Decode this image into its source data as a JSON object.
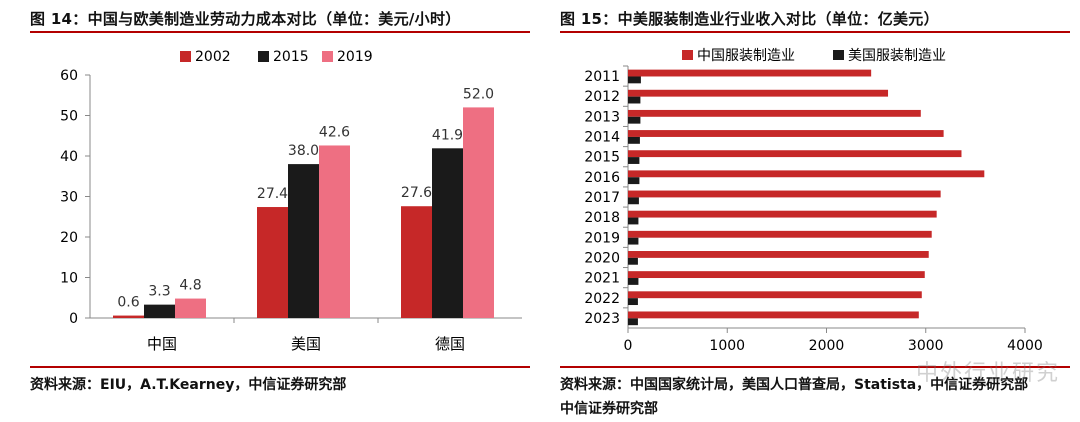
{
  "left": {
    "title": "图 14：中国与欧美制造业劳动力成本对比（单位：美元/小时）",
    "source": "资料来源：EIU，A.T.Kearney，中信证券研究部"
  },
  "right": {
    "title": "图 15：中美服装制造业行业收入对比（单位：亿美元）",
    "source_line1": "资料来源：中国国家统计局，美国人口普查局，Statista，中信证券研究部",
    "source_line2": "中信证券研究部"
  },
  "watermark": "中外行业研究",
  "colors": {
    "accent": "#b30000",
    "c2002": "#c62828",
    "c2015": "#1a1a1a",
    "c2019": "#ee6f82",
    "china": "#c62828",
    "us": "#1a1a1a"
  },
  "chart_data": [
    {
      "type": "bar",
      "categories": [
        "中国",
        "美国",
        "德国"
      ],
      "series": [
        {
          "name": "2002",
          "values": [
            0.6,
            27.4,
            27.6
          ]
        },
        {
          "name": "2015",
          "values": [
            3.3,
            38.0,
            41.9
          ]
        },
        {
          "name": "2019",
          "values": [
            4.8,
            42.6,
            52.0
          ]
        }
      ],
      "data_labels": [
        [
          "0.6",
          "27.4",
          "27.6"
        ],
        [
          "3.3",
          "38.0",
          "41.9"
        ],
        [
          "4.8",
          "42.6",
          "52.0"
        ]
      ],
      "yticks": [
        "0",
        "10",
        "20",
        "30",
        "40",
        "50",
        "60"
      ],
      "ylim": [
        0,
        60
      ],
      "legend": "top"
    },
    {
      "type": "bar",
      "orientation": "horizontal",
      "categories": [
        "2011",
        "2012",
        "2013",
        "2014",
        "2015",
        "2016",
        "2017",
        "2018",
        "2019",
        "2020",
        "2021",
        "2022",
        "2023"
      ],
      "series": [
        {
          "name": "中国服装制造业",
          "values": [
            2450,
            2620,
            2950,
            3180,
            3360,
            3590,
            3150,
            3110,
            3060,
            3030,
            2990,
            2960,
            2930
          ]
        },
        {
          "name": "美国服装制造业",
          "values": [
            130,
            125,
            125,
            120,
            115,
            115,
            110,
            105,
            105,
            100,
            105,
            100,
            100
          ]
        }
      ],
      "xticks": [
        "0",
        "1000",
        "2000",
        "3000",
        "4000"
      ],
      "xlim": [
        0,
        4000
      ],
      "legend": "top"
    }
  ]
}
